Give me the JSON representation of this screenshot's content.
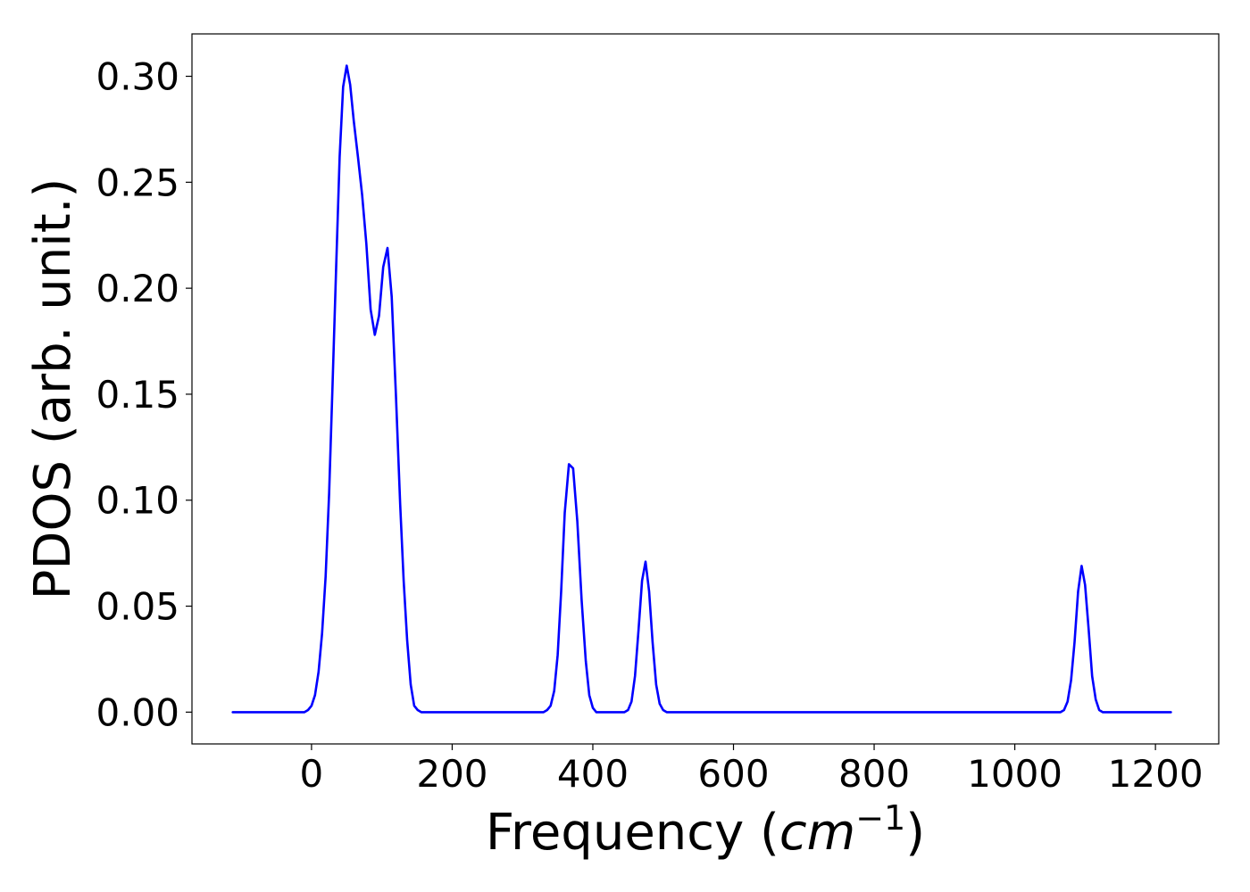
{
  "chart_data": {
    "type": "line",
    "title": "",
    "xlabel_prefix": "Frequency (",
    "xlabel_math": "cm",
    "xlabel_superscript": "−1",
    "xlabel_suffix": ")",
    "ylabel": "PDOS (arb. unit.)",
    "xlim": [
      -170,
      1290
    ],
    "ylim": [
      -0.015,
      0.32
    ],
    "xticks": [
      0,
      200,
      400,
      600,
      800,
      1000,
      1200
    ],
    "xtick_labels": [
      "0",
      "200",
      "400",
      "600",
      "800",
      "1000",
      "1200"
    ],
    "yticks": [
      0.0,
      0.05,
      0.1,
      0.15,
      0.2,
      0.25,
      0.3
    ],
    "ytick_labels": [
      "0.00",
      "0.05",
      "0.10",
      "0.15",
      "0.20",
      "0.25",
      "0.30"
    ],
    "grid": false,
    "legend": "none",
    "series": [
      {
        "color": "#0000ff",
        "x": [
          -112,
          -10,
          -5,
          0,
          5,
          10,
          15,
          20,
          25,
          30,
          35,
          40,
          45,
          50,
          55,
          60,
          66,
          72,
          78,
          84,
          90,
          96,
          102,
          108,
          114,
          120,
          126,
          131,
          136,
          141,
          146,
          151,
          156,
          161,
          166,
          171,
          176,
          181,
          186,
          190,
          330,
          335,
          340,
          345,
          350,
          355,
          360,
          366,
          372,
          378,
          384,
          390,
          395,
          400,
          405,
          410,
          415,
          420,
          425,
          445,
          450,
          455,
          460,
          465,
          470,
          475,
          480,
          485,
          490,
          495,
          500,
          505,
          510,
          515,
          520,
          525,
          1065,
          1070,
          1075,
          1080,
          1085,
          1090,
          1095,
          1100,
          1105,
          1110,
          1115,
          1120,
          1125,
          1130,
          1135,
          1140,
          1222
        ],
        "y": [
          0.0,
          0.0,
          0.001,
          0.003,
          0.008,
          0.019,
          0.037,
          0.064,
          0.103,
          0.155,
          0.21,
          0.262,
          0.295,
          0.305,
          0.296,
          0.279,
          0.262,
          0.244,
          0.221,
          0.19,
          0.178,
          0.187,
          0.21,
          0.219,
          0.196,
          0.15,
          0.098,
          0.062,
          0.034,
          0.013,
          0.003,
          0.001,
          0.0,
          0.0,
          0.0,
          0.0,
          0.0,
          0.0,
          0.0,
          0.0,
          0.0,
          0.001,
          0.003,
          0.01,
          0.027,
          0.057,
          0.094,
          0.117,
          0.115,
          0.09,
          0.053,
          0.024,
          0.008,
          0.002,
          0.0,
          0.0,
          0.0,
          0.0,
          0.0,
          0.0,
          0.001,
          0.005,
          0.017,
          0.039,
          0.062,
          0.071,
          0.057,
          0.033,
          0.013,
          0.004,
          0.001,
          0.0,
          0.0,
          0.0,
          0.0,
          0.0,
          0.0,
          0.001,
          0.005,
          0.015,
          0.033,
          0.057,
          0.069,
          0.06,
          0.039,
          0.017,
          0.006,
          0.001,
          0.0,
          0.0,
          0.0,
          0.0,
          0.0
        ]
      }
    ]
  }
}
